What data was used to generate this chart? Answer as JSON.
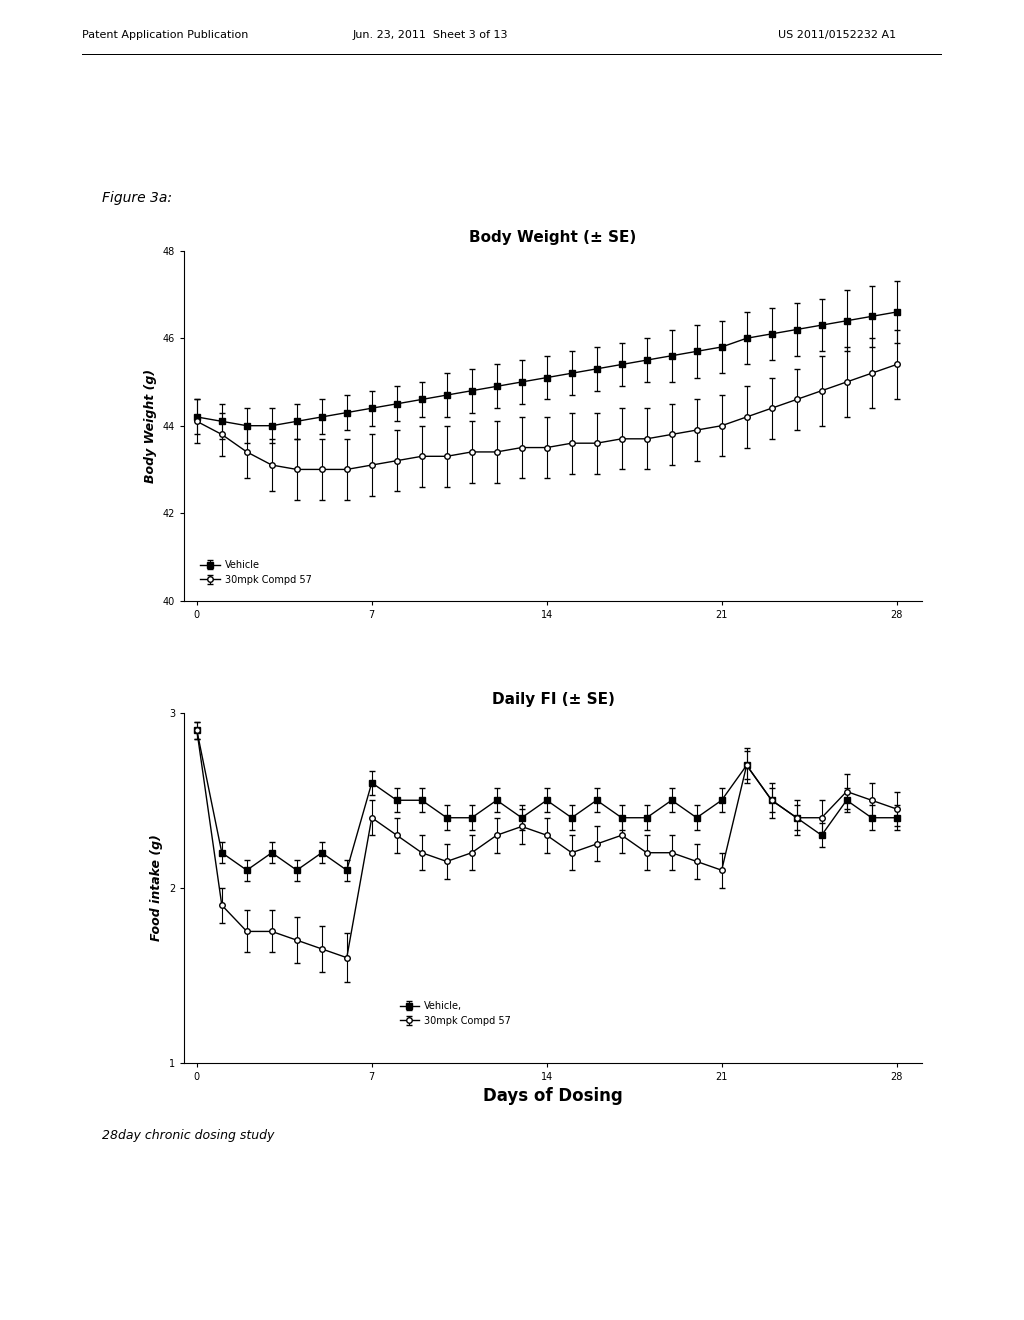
{
  "fig_label": "Figure 3a:",
  "bottom_label": "28day chronic dosing study",
  "header_left": "Patent Application Publication",
  "header_mid": "Jun. 23, 2011  Sheet 3 of 13",
  "header_right": "US 2011/0152232 A1",
  "plot1": {
    "title": "Body Weight (± SE)",
    "ylabel": "Body Weight (g)",
    "ylim": [
      40,
      48
    ],
    "yticks": [
      40,
      42,
      44,
      46,
      48
    ],
    "xticks": [
      0,
      7,
      14,
      21,
      28
    ],
    "vehicle_x": [
      0,
      1,
      2,
      3,
      4,
      5,
      6,
      7,
      8,
      9,
      10,
      11,
      12,
      13,
      14,
      15,
      16,
      17,
      18,
      19,
      20,
      21,
      22,
      23,
      24,
      25,
      26,
      27,
      28
    ],
    "vehicle_y": [
      44.2,
      44.1,
      44.0,
      44.0,
      44.1,
      44.2,
      44.3,
      44.4,
      44.5,
      44.6,
      44.7,
      44.8,
      44.9,
      45.0,
      45.1,
      45.2,
      45.3,
      45.4,
      45.5,
      45.6,
      45.7,
      45.8,
      46.0,
      46.1,
      46.2,
      46.3,
      46.4,
      46.5,
      46.6
    ],
    "vehicle_err": [
      0.4,
      0.4,
      0.4,
      0.4,
      0.4,
      0.4,
      0.4,
      0.4,
      0.4,
      0.4,
      0.5,
      0.5,
      0.5,
      0.5,
      0.5,
      0.5,
      0.5,
      0.5,
      0.5,
      0.6,
      0.6,
      0.6,
      0.6,
      0.6,
      0.6,
      0.6,
      0.7,
      0.7,
      0.7
    ],
    "compd_x": [
      0,
      1,
      2,
      3,
      4,
      5,
      6,
      7,
      8,
      9,
      10,
      11,
      12,
      13,
      14,
      15,
      16,
      17,
      18,
      19,
      20,
      21,
      22,
      23,
      24,
      25,
      26,
      27,
      28
    ],
    "compd_y": [
      44.1,
      43.8,
      43.4,
      43.1,
      43.0,
      43.0,
      43.0,
      43.1,
      43.2,
      43.3,
      43.3,
      43.4,
      43.4,
      43.5,
      43.5,
      43.6,
      43.6,
      43.7,
      43.7,
      43.8,
      43.9,
      44.0,
      44.2,
      44.4,
      44.6,
      44.8,
      45.0,
      45.2,
      45.4
    ],
    "compd_err": [
      0.5,
      0.5,
      0.6,
      0.6,
      0.7,
      0.7,
      0.7,
      0.7,
      0.7,
      0.7,
      0.7,
      0.7,
      0.7,
      0.7,
      0.7,
      0.7,
      0.7,
      0.7,
      0.7,
      0.7,
      0.7,
      0.7,
      0.7,
      0.7,
      0.7,
      0.8,
      0.8,
      0.8,
      0.8
    ],
    "legend1": "Vehicle",
    "legend2": "30mpk Compd 57"
  },
  "plot2": {
    "title": "Daily FI (± SE)",
    "ylabel": "Food intake (g)",
    "xlabel": "Days of Dosing",
    "ylim": [
      1,
      3
    ],
    "yticks": [
      1,
      2,
      3
    ],
    "xticks": [
      0,
      7,
      14,
      21,
      28
    ],
    "vehicle_x": [
      0,
      1,
      2,
      3,
      4,
      5,
      6,
      7,
      8,
      9,
      10,
      11,
      12,
      13,
      14,
      15,
      16,
      17,
      18,
      19,
      20,
      21,
      22,
      23,
      24,
      25,
      26,
      27,
      28
    ],
    "vehicle_y": [
      2.9,
      2.2,
      2.1,
      2.2,
      2.1,
      2.2,
      2.1,
      2.6,
      2.5,
      2.5,
      2.4,
      2.4,
      2.5,
      2.4,
      2.5,
      2.4,
      2.5,
      2.4,
      2.4,
      2.5,
      2.4,
      2.5,
      2.7,
      2.5,
      2.4,
      2.3,
      2.5,
      2.4,
      2.4
    ],
    "vehicle_err": [
      0.05,
      0.06,
      0.06,
      0.06,
      0.06,
      0.06,
      0.06,
      0.07,
      0.07,
      0.07,
      0.07,
      0.07,
      0.07,
      0.07,
      0.07,
      0.07,
      0.07,
      0.07,
      0.07,
      0.07,
      0.07,
      0.07,
      0.08,
      0.07,
      0.07,
      0.07,
      0.07,
      0.07,
      0.07
    ],
    "compd_x": [
      0,
      1,
      2,
      3,
      4,
      5,
      6,
      7,
      8,
      9,
      10,
      11,
      12,
      13,
      14,
      15,
      16,
      17,
      18,
      19,
      20,
      21,
      22,
      23,
      24,
      25,
      26,
      27,
      28
    ],
    "compd_y": [
      2.9,
      1.9,
      1.75,
      1.75,
      1.7,
      1.65,
      1.6,
      2.4,
      2.3,
      2.2,
      2.15,
      2.2,
      2.3,
      2.35,
      2.3,
      2.2,
      2.25,
      2.3,
      2.2,
      2.2,
      2.15,
      2.1,
      2.7,
      2.5,
      2.4,
      2.4,
      2.55,
      2.5,
      2.45
    ],
    "compd_err": [
      0.05,
      0.1,
      0.12,
      0.12,
      0.13,
      0.13,
      0.14,
      0.1,
      0.1,
      0.1,
      0.1,
      0.1,
      0.1,
      0.1,
      0.1,
      0.1,
      0.1,
      0.1,
      0.1,
      0.1,
      0.1,
      0.1,
      0.1,
      0.1,
      0.1,
      0.1,
      0.1,
      0.1,
      0.1
    ],
    "legend1": "Vehicle,",
    "legend2": "30mpk Compd 57"
  }
}
